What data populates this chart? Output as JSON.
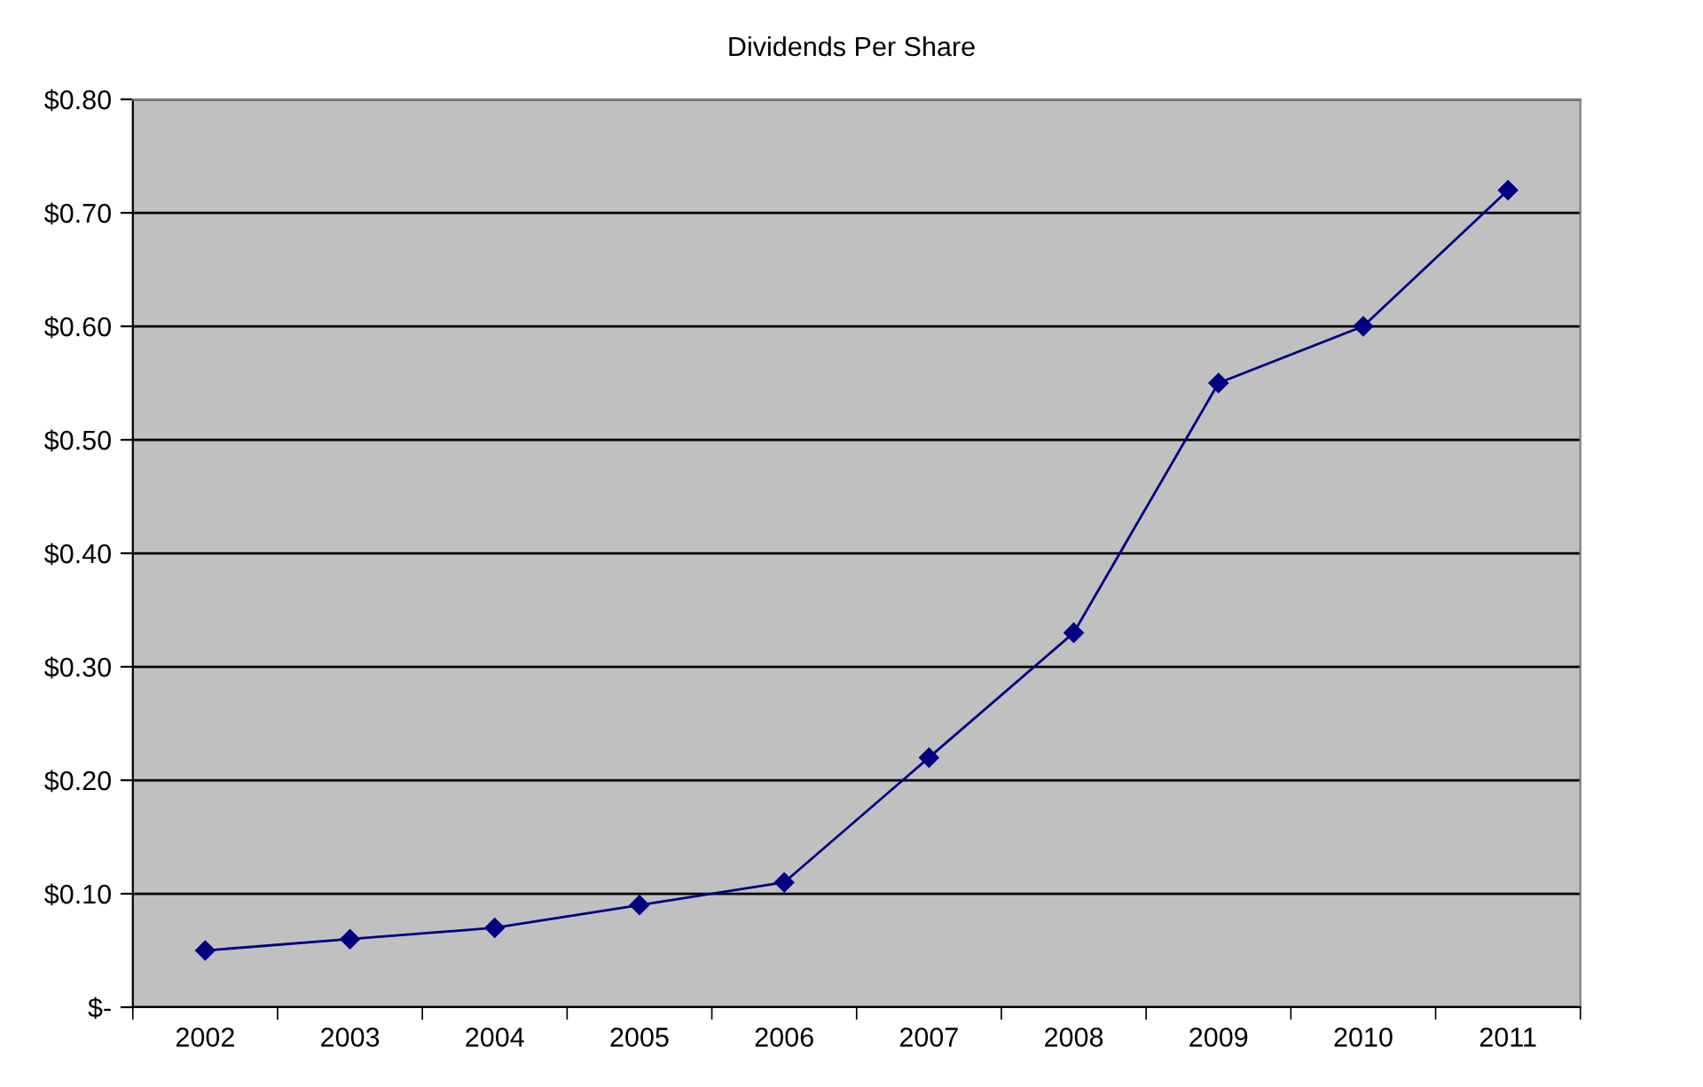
{
  "chart_data": {
    "type": "line",
    "title": "Dividends Per Share",
    "categories": [
      "2002",
      "2003",
      "2004",
      "2005",
      "2006",
      "2007",
      "2008",
      "2009",
      "2010",
      "2011"
    ],
    "series": [
      {
        "color": "#000080",
        "values": [
          0.05,
          0.06,
          0.07,
          0.09,
          0.11,
          0.22,
          0.33,
          0.55,
          0.6,
          0.72
        ]
      }
    ],
    "ylim": [
      0,
      0.8
    ],
    "yticks": [
      {
        "value": 0,
        "label": "$-"
      },
      {
        "value": 0.1,
        "label": "$0.10"
      },
      {
        "value": 0.2,
        "label": "$0.20"
      },
      {
        "value": 0.3,
        "label": "$0.30"
      },
      {
        "value": 0.4,
        "label": "$0.40"
      },
      {
        "value": 0.5,
        "label": "$0.50"
      },
      {
        "value": 0.6,
        "label": "$0.60"
      },
      {
        "value": 0.7,
        "label": "$0.70"
      },
      {
        "value": 0.8,
        "label": "$0.80"
      }
    ],
    "grid": "y",
    "marker": "diamond",
    "line_style": "solid"
  }
}
